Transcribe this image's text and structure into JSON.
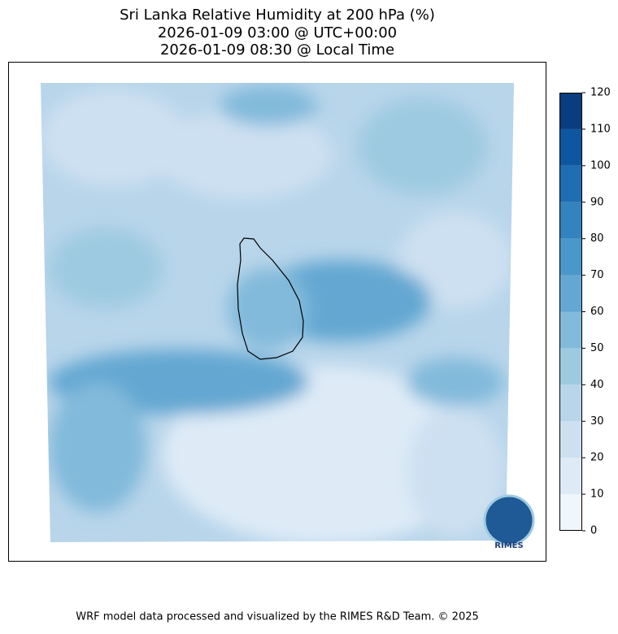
{
  "title": [
    "Sri Lanka Relative Humidity at 200 hPa (%)",
    "2026-01-09 03:00 @ UTC+00:00",
    "2026-01-09 08:30 @ Local Time"
  ],
  "colorbar": {
    "ticks": [
      0,
      10,
      20,
      30,
      40,
      50,
      60,
      70,
      80,
      90,
      100,
      110,
      120
    ],
    "colors": [
      "#eff6fc",
      "#deebf7",
      "#cde0f1",
      "#b8d5ea",
      "#9ecae1",
      "#82badb",
      "#63a7d2",
      "#4a98c9",
      "#3383be",
      "#1f6eb3",
      "#0d57a1",
      "#083d7f"
    ]
  },
  "logo_text": "RIMES",
  "footer": "WRF model data processed and visualized by the RIMES R&D Team. © 2025"
}
